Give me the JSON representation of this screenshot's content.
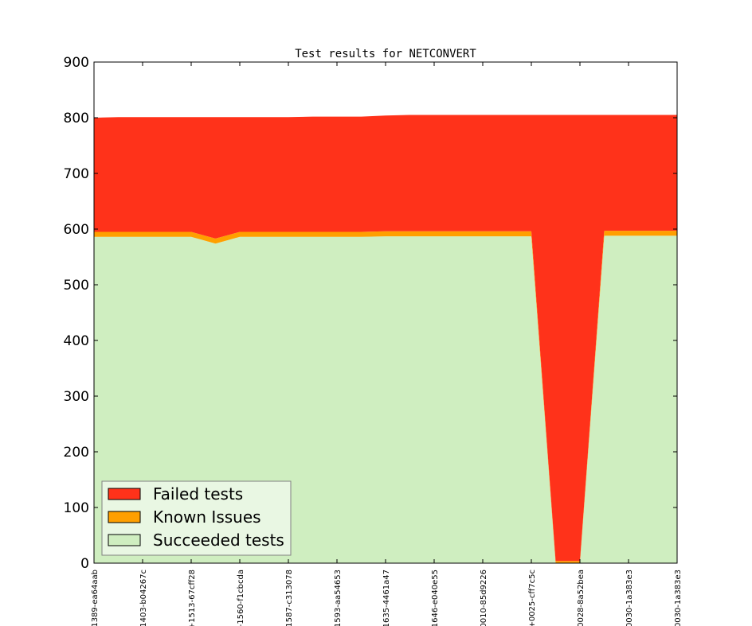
{
  "chart_data": {
    "type": "area",
    "stacked": true,
    "title": "Test results for NETCONVERT",
    "xlabel": "",
    "ylabel": "",
    "ylim": [
      0,
      900
    ],
    "yticks": [
      0,
      100,
      200,
      300,
      400,
      500,
      600,
      700,
      800,
      900
    ],
    "xtick_labels": [
      "1389-ea64aab",
      "1403-b04267c",
      "+1513-67cff28",
      "-1560-f1cbcda",
      "1587-c313078",
      "1593-aa54653",
      "1635-4461a47",
      "1646-e040e55",
      "0010-85d9226",
      "+0025-cff7c5c",
      "0028-8a52bea",
      "0030-1a383e3",
      "0030-1a383e3"
    ],
    "x": [
      0,
      0.5,
      1,
      1.5,
      2,
      2.5,
      3,
      3.5,
      4,
      4.5,
      5,
      5.5,
      6,
      6.5,
      7,
      7.5,
      8,
      8.5,
      9,
      9.5,
      10,
      10.5,
      11,
      11.5,
      12
    ],
    "series": [
      {
        "name": "Succeeded tests",
        "color": "#cfeec0",
        "values": [
          586,
          586,
          586,
          586,
          586,
          574,
          586,
          586,
          586,
          586,
          586,
          586,
          587,
          587,
          587,
          587,
          587,
          587,
          587,
          0,
          0,
          588,
          588,
          588,
          588
        ]
      },
      {
        "name": "Known Issues",
        "color": "#ff9f00",
        "values": [
          9,
          9,
          9,
          9,
          9,
          9,
          9,
          9,
          9,
          9,
          9,
          9,
          9,
          9,
          9,
          9,
          9,
          9,
          9,
          4,
          4,
          9,
          9,
          9,
          9
        ]
      },
      {
        "name": "Failed tests",
        "color": "#ff321a",
        "values": [
          205,
          206,
          206,
          206,
          206,
          218,
          206,
          206,
          206,
          207,
          207,
          207,
          208,
          209,
          209,
          209,
          209,
          209,
          209,
          801,
          801,
          208,
          208,
          208,
          208
        ]
      }
    ],
    "legend": {
      "placement": "lower-left",
      "entries": [
        "Failed tests",
        "Known Issues",
        "Succeeded tests"
      ]
    },
    "grid": false
  }
}
